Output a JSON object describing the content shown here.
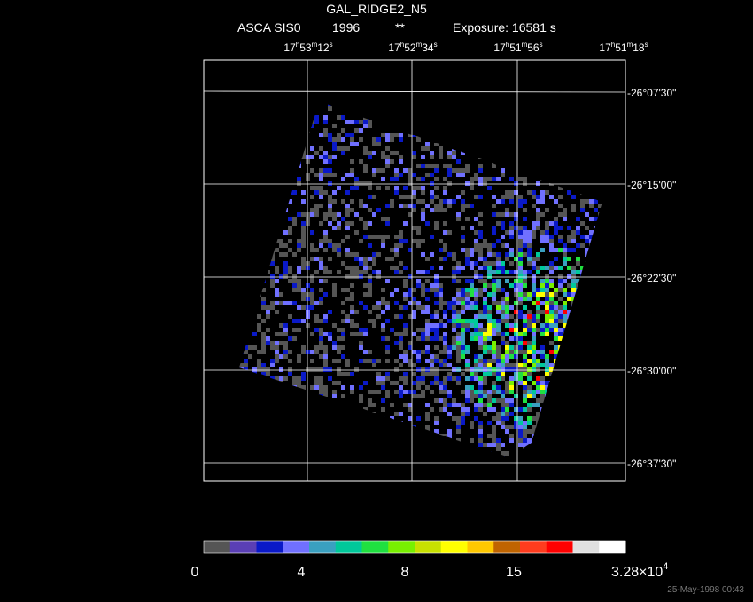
{
  "header": {
    "title": "GAL_RIDGE2_N5",
    "instrument": "ASCA SIS0",
    "year": "1996",
    "flag": "**",
    "exposure": "Exposure: 16581 s"
  },
  "ra_labels": [
    [
      "17",
      "h",
      "53",
      "m",
      "12",
      "s"
    ],
    [
      "17",
      "h",
      "52",
      "m",
      "34",
      "s"
    ],
    [
      "17",
      "h",
      "51",
      "m",
      "56",
      "s"
    ],
    [
      "17",
      "h",
      "51",
      "m",
      "18",
      "s"
    ]
  ],
  "dec_labels": [
    "-26°07'30\"",
    "-26°15'00\"",
    "-26°22'30\"",
    "-26°30'00\"",
    "-26°37'30\""
  ],
  "colorbar": {
    "colors": [
      "#555555",
      "#5a3fb5",
      "#0a19c8",
      "#7070ff",
      "#3aa0c0",
      "#00c89a",
      "#20e040",
      "#78f000",
      "#c8e000",
      "#ffff00",
      "#ffc800",
      "#c06400",
      "#ff3c1e",
      "#ff0000",
      "#e0e0e0",
      "#ffffff"
    ],
    "labels": [
      "0",
      "4",
      "8",
      "15"
    ],
    "max_label": {
      "base": "3.28×10",
      "exponent": "4"
    }
  },
  "timestamp": "25-May-1998 00:43"
}
